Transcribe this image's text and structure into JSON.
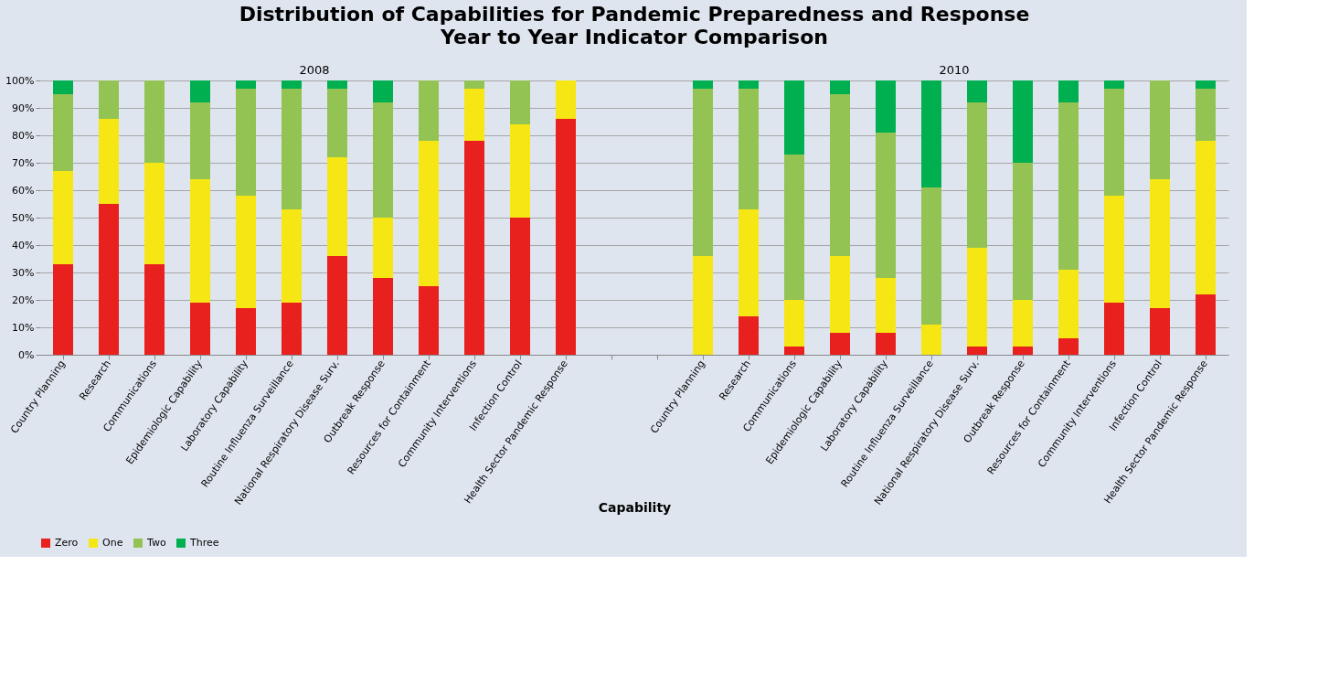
{
  "chart_data": {
    "type": "bar",
    "stacked": true,
    "title": "Distribution of Capabilities for Pandemic Preparedness and Response",
    "subtitle": "Year to Year  Indicator Comparison",
    "xlabel": "Capability",
    "annotations": [
      "2008",
      "2010"
    ],
    "categories": [
      "Country Planning",
      "Research",
      "Communications",
      "Epidemiologic Capability",
      "Laboratory Capability",
      "Routine Influenza Surveillance",
      "National Respiratory Disease Surv.",
      "Outbreak Response",
      "Resources for Containment",
      "Community Interventions",
      "Infection Control",
      "Health Sector Pandemic Response",
      null,
      null,
      "Country Planning",
      "Research",
      "Communications",
      "Epidemiologic Capability",
      "Laboratory Capability",
      "Routine Influenza Surveillance",
      "National Respiratory Disease Surv.",
      "Outbreak Response",
      "Resources for Containment",
      "Community Interventions",
      "Infection Control",
      "Health Sector Pandemic Response"
    ],
    "series": [
      {
        "name": "Zero",
        "color": "#e8201e",
        "values": [
          33,
          55,
          33,
          19,
          17,
          19,
          36,
          28,
          25,
          78,
          50,
          86,
          null,
          null,
          0,
          14,
          3,
          8,
          8,
          0,
          3,
          3,
          6,
          19,
          17,
          22
        ]
      },
      {
        "name": "One",
        "color": "#f5e614",
        "values": [
          34,
          31,
          37,
          45,
          41,
          34,
          36,
          22,
          53,
          19,
          34,
          14,
          null,
          null,
          36,
          39,
          17,
          28,
          20,
          11,
          36,
          17,
          25,
          39,
          47,
          56
        ]
      },
      {
        "name": "Two",
        "color": "#92c353",
        "values": [
          28,
          14,
          30,
          28,
          39,
          44,
          25,
          42,
          22,
          3,
          16,
          0,
          null,
          null,
          61,
          44,
          53,
          59,
          53,
          50,
          53,
          50,
          61,
          39,
          36,
          19
        ]
      },
      {
        "name": "Three",
        "color": "#00b050",
        "values": [
          5,
          0,
          0,
          8,
          3,
          3,
          3,
          8,
          0,
          0,
          0,
          0,
          null,
          null,
          3,
          3,
          27,
          5,
          19,
          39,
          8,
          30,
          8,
          3,
          0,
          3
        ]
      }
    ],
    "ylim": [
      0,
      100
    ],
    "yticks": [
      {
        "value": 0,
        "label": "0%"
      },
      {
        "value": 10,
        "label": "10%"
      },
      {
        "value": 20,
        "label": "20%"
      },
      {
        "value": 30,
        "label": "30%"
      },
      {
        "value": 40,
        "label": "40%"
      },
      {
        "value": 50,
        "label": "50%"
      },
      {
        "value": 60,
        "label": "60%"
      },
      {
        "value": 70,
        "label": "70%"
      },
      {
        "value": 80,
        "label": "80%"
      },
      {
        "value": 90,
        "label": "90%"
      },
      {
        "value": 100,
        "label": "100%"
      }
    ],
    "grid": "y",
    "legend": "bottom left"
  }
}
